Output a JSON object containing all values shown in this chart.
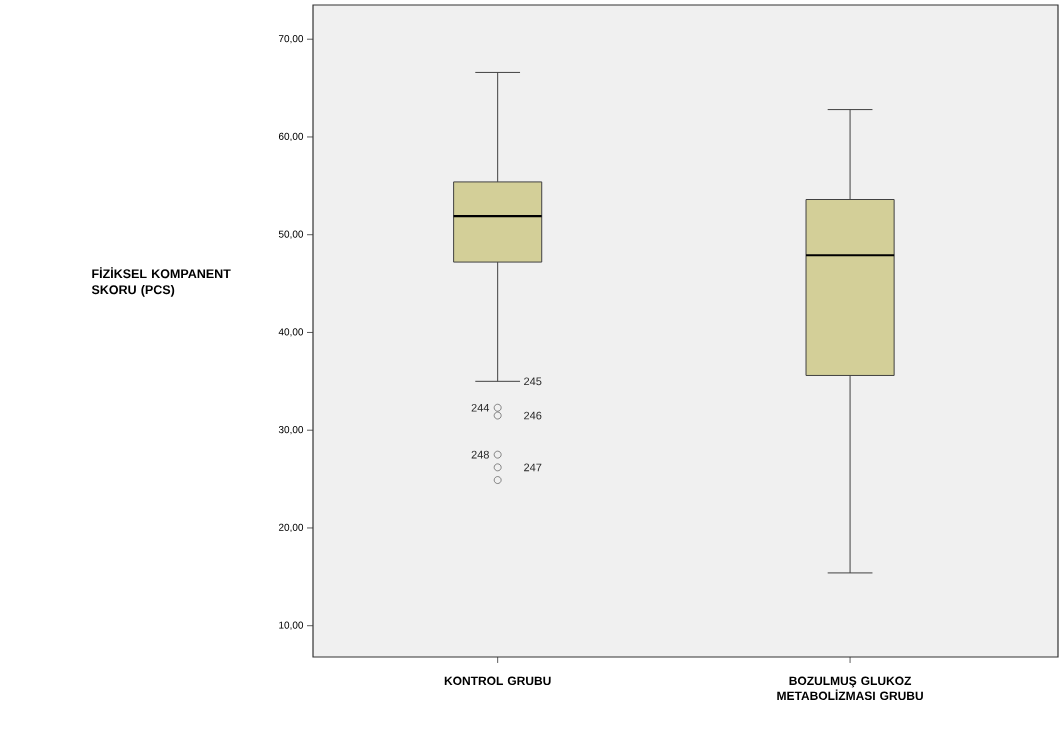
{
  "chart_data": {
    "type": "box",
    "ylabel": "FİZİKSEL KOMPANENT SKORU    (PCS)",
    "categories": [
      "KONTROL GRUBU",
      "BOZULMUŞ GLUKOZ METABOLİZMASI GRUBU"
    ],
    "color": "#d3cf98",
    "boxes": [
      {
        "low": 35.0,
        "q1": 47.2,
        "median": 51.9,
        "q3": 55.4,
        "high": 66.6,
        "outliers": [
          32.3,
          31.5,
          27.5,
          26.2,
          24.9
        ]
      },
      {
        "low": 15.4,
        "q1": 35.6,
        "median": 47.9,
        "q3": 53.6,
        "high": 62.8
      }
    ],
    "ylim": [
      6.8,
      73.5
    ],
    "yticks": [
      {
        "value": 10,
        "label": "10,00"
      },
      {
        "value": 20,
        "label": "20,00"
      },
      {
        "value": 30,
        "label": "30,00"
      },
      {
        "value": 40,
        "label": "40,00"
      },
      {
        "value": 50,
        "label": "50,00"
      },
      {
        "value": 60,
        "label": "60,00"
      },
      {
        "value": 70,
        "label": "70,00"
      }
    ],
    "annotations": [
      "245",
      "244",
      "246",
      "248",
      "247"
    ],
    "grid": false
  }
}
